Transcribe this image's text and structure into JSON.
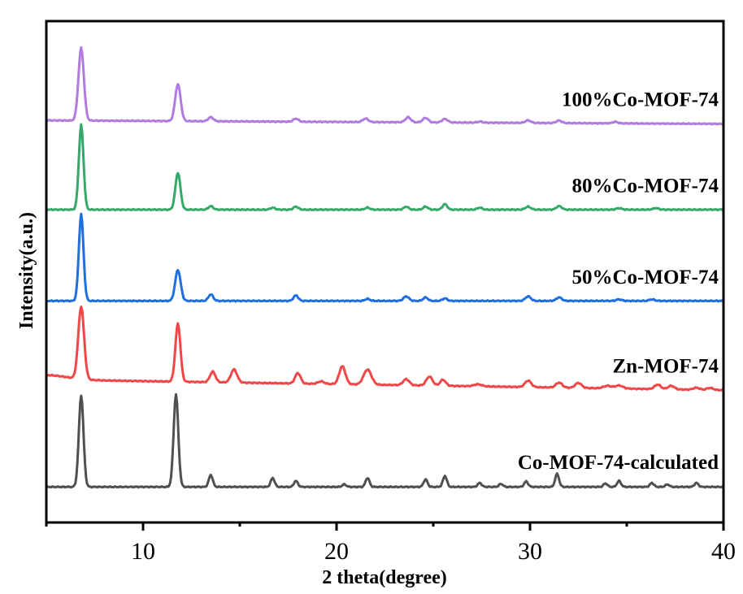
{
  "chart_data": {
    "type": "line",
    "title": "",
    "xlabel": "2 theta(degree)",
    "ylabel": "Intensity(a.u.)",
    "xlim": [
      5,
      40
    ],
    "ylim": [
      0,
      100
    ],
    "xticks": [
      10,
      20,
      30,
      40
    ],
    "xtick_labels": [
      "10",
      "20",
      "30",
      "40"
    ],
    "minor_xticks": [
      5,
      15,
      25,
      35
    ],
    "yticks_shown": false,
    "grid": false,
    "legend": "inline labels at right end of each trace",
    "note": "Stacked XRD patterns; intensities are vertically offset arbitrary units estimated from the figure.",
    "series": [
      {
        "name": "Co-MOF-74-calculated",
        "color": "#505050",
        "baseline": 7.1,
        "slope": 0.0,
        "peaks": [
          [
            6.8,
            18.3,
            0.12
          ],
          [
            11.7,
            18.5,
            0.12
          ],
          [
            13.5,
            2.4,
            0.1
          ],
          [
            16.7,
            1.8,
            0.1
          ],
          [
            17.9,
            1.2,
            0.1
          ],
          [
            20.4,
            0.5,
            0.1
          ],
          [
            21.6,
            1.8,
            0.1
          ],
          [
            24.6,
            1.5,
            0.1
          ],
          [
            25.6,
            2.2,
            0.1
          ],
          [
            27.4,
            0.8,
            0.1
          ],
          [
            28.5,
            0.6,
            0.1
          ],
          [
            29.8,
            1.1,
            0.1
          ],
          [
            31.4,
            2.6,
            0.1
          ],
          [
            33.9,
            0.7,
            0.1
          ],
          [
            34.6,
            1.2,
            0.1
          ],
          [
            36.3,
            0.8,
            0.1
          ],
          [
            37.1,
            0.5,
            0.1
          ],
          [
            38.6,
            0.8,
            0.1
          ]
        ]
      },
      {
        "name": "Zn-MOF-74",
        "color": "#f04848",
        "baseline": 28.5,
        "slope": -0.06,
        "peaks": [
          [
            6.8,
            14.5,
            0.15
          ],
          [
            11.8,
            11.6,
            0.13
          ],
          [
            13.6,
            2.1,
            0.14
          ],
          [
            14.7,
            2.6,
            0.16
          ],
          [
            18.0,
            2.1,
            0.14
          ],
          [
            19.2,
            0.5,
            0.16
          ],
          [
            20.3,
            3.6,
            0.16
          ],
          [
            21.6,
            3.0,
            0.2
          ],
          [
            23.6,
            1.2,
            0.16
          ],
          [
            24.8,
            1.8,
            0.16
          ],
          [
            25.5,
            1.2,
            0.14
          ],
          [
            27.3,
            0.4,
            0.2
          ],
          [
            29.9,
            1.3,
            0.16
          ],
          [
            31.5,
            1.0,
            0.16
          ],
          [
            32.5,
            1.0,
            0.16
          ],
          [
            34.0,
            0.5,
            0.2
          ],
          [
            34.6,
            0.6,
            0.2
          ],
          [
            36.6,
            0.9,
            0.16
          ],
          [
            37.3,
            0.7,
            0.16
          ],
          [
            38.6,
            0.4,
            0.16
          ],
          [
            39.3,
            0.4,
            0.16
          ]
        ]
      },
      {
        "name": "50%Co-MOF-74",
        "color": "#1f6fde",
        "baseline": 44.2,
        "slope": 0.0,
        "peaks": [
          [
            6.8,
            17.3,
            0.12
          ],
          [
            11.8,
            6.2,
            0.14
          ],
          [
            13.5,
            1.3,
            0.12
          ],
          [
            17.9,
            1.1,
            0.12
          ],
          [
            21.6,
            0.4,
            0.12
          ],
          [
            23.6,
            0.9,
            0.14
          ],
          [
            24.6,
            0.7,
            0.12
          ],
          [
            25.6,
            0.5,
            0.12
          ],
          [
            29.9,
            0.9,
            0.14
          ],
          [
            31.5,
            0.7,
            0.14
          ],
          [
            34.6,
            0.3,
            0.14
          ],
          [
            36.3,
            0.3,
            0.14
          ]
        ]
      },
      {
        "name": "80%Co-MOF-74",
        "color": "#36a96a",
        "baseline": 62.4,
        "slope": 0.0,
        "peaks": [
          [
            6.8,
            16.9,
            0.12
          ],
          [
            11.8,
            7.4,
            0.13
          ],
          [
            13.5,
            0.7,
            0.12
          ],
          [
            16.7,
            0.4,
            0.12
          ],
          [
            17.9,
            0.6,
            0.12
          ],
          [
            21.6,
            0.4,
            0.12
          ],
          [
            23.6,
            0.6,
            0.12
          ],
          [
            24.6,
            0.6,
            0.12
          ],
          [
            25.6,
            1.1,
            0.12
          ],
          [
            27.4,
            0.4,
            0.12
          ],
          [
            29.9,
            0.6,
            0.14
          ],
          [
            31.5,
            0.7,
            0.14
          ],
          [
            34.6,
            0.3,
            0.14
          ],
          [
            36.5,
            0.3,
            0.14
          ]
        ]
      },
      {
        "name": "100%Co-MOF-74",
        "color": "#b27be0",
        "baseline": 80.2,
        "slope": -0.02,
        "peaks": [
          [
            6.8,
            14.5,
            0.14
          ],
          [
            11.8,
            7.4,
            0.14
          ],
          [
            13.5,
            0.8,
            0.13
          ],
          [
            17.9,
            0.6,
            0.13
          ],
          [
            21.5,
            0.7,
            0.14
          ],
          [
            23.7,
            1.0,
            0.14
          ],
          [
            24.6,
            0.9,
            0.14
          ],
          [
            25.6,
            0.7,
            0.14
          ],
          [
            27.4,
            0.2,
            0.14
          ],
          [
            29.9,
            0.5,
            0.14
          ],
          [
            31.5,
            0.5,
            0.14
          ],
          [
            34.4,
            0.3,
            0.14
          ]
        ]
      }
    ]
  }
}
